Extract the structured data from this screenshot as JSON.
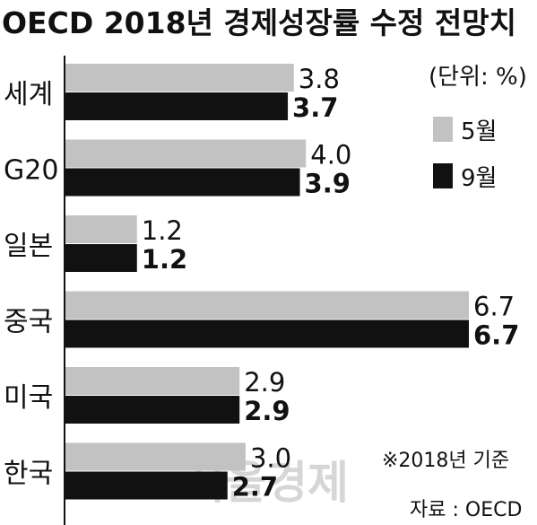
{
  "chart_data": {
    "type": "bar",
    "orientation": "horizontal",
    "title": "OECD 2018년 경제성장률 수정 전망치",
    "unit_note": "(단위: %)",
    "categories": [
      "세계",
      "G20",
      "일본",
      "중국",
      "미국",
      "한국"
    ],
    "series": [
      {
        "name": "5월",
        "color": "#c2c2c2",
        "values": [
          3.8,
          4.0,
          1.2,
          6.7,
          2.9,
          3.0
        ]
      },
      {
        "name": "9월",
        "color": "#111111",
        "values": [
          3.7,
          3.9,
          1.2,
          6.7,
          2.9,
          2.7
        ]
      }
    ],
    "value_labels": {
      "5월": [
        "3.8",
        "4.0",
        "1.2",
        "6.7",
        "2.9",
        "3.0"
      ],
      "9월": [
        "3.7",
        "3.9",
        "1.2",
        "6.7",
        "2.9",
        "2.7"
      ]
    },
    "xlim": [
      0,
      6.7
    ],
    "legend_position": "top-right",
    "grid": false,
    "footnote": "※2018년 기준",
    "source": "자료 :  OECD",
    "watermark": "서울경제"
  }
}
